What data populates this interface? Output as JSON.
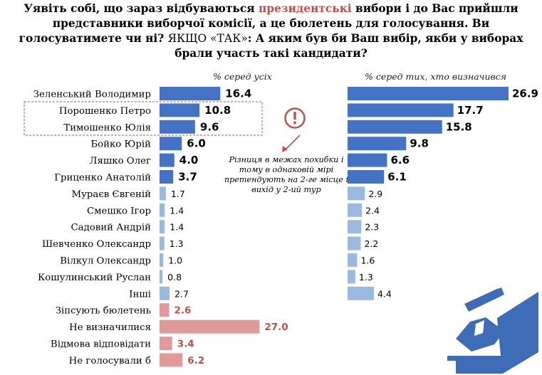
{
  "title": {
    "part1": "Уявіть собі, що зараз відбуваються ",
    "highlight": "президентські",
    "part2": " вибори і до Вас прийшли представники виборчої комісії, а це бюлетень для голосування. Ви голосуватимете чи ні? ",
    "plain": "ЯКЩО «ТАК»",
    "part3": ": А яким був би Ваш вибір, якби у виборах брали участь такі кандидати?"
  },
  "headers": {
    "all": "% серед усіх",
    "decided": "% серед тих, хто визначився"
  },
  "note": "Різниця в межах похибки і тому в однаковій мірі претендують на 2-ге місце і вихід у 2-ий тур",
  "colors": {
    "strong_blue": "#4472c4",
    "light_blue": "#9bb9df",
    "red_bar": "#e09a9a",
    "red_text": "#c0504d",
    "highlight_box": "#c0504d",
    "icon_blue": "#3e6cb6"
  },
  "icons": [
    "exclamation-circle-icon",
    "arrow-icon",
    "ballot-box-icon"
  ],
  "chart_data": [
    {
      "type": "bar",
      "orientation": "horizontal",
      "series_label": "% серед усіх",
      "categories": [
        "Зеленський Володимир",
        "Порошенко Петро",
        "Тимошенко Юлія",
        "Бойко Юрій",
        "Ляшко Олег",
        "Гриценко Анатолій",
        "Мураєв Євгеній",
        "Смешко Ігор",
        "Садовий Андрій",
        "Шевченко Олександр",
        "Вілкул Олександр",
        "Кошулинський Руслан",
        "Інші",
        "Зіпсують бюлетень",
        "Не визначилися",
        "Відмова відповідати",
        "Не голосували б"
      ],
      "values": [
        16.4,
        10.8,
        9.6,
        6.0,
        4.0,
        3.7,
        1.7,
        1.4,
        1.4,
        1.3,
        1.0,
        0.8,
        2.7,
        2.6,
        27.0,
        3.4,
        6.2
      ],
      "value_labels": [
        "16.4",
        "10.8",
        "9.6",
        "6.0",
        "4.0",
        "3.7",
        "1.7",
        "1.4",
        "1.4",
        "1.3",
        "1.0",
        "0.8",
        "2.7",
        "2.6",
        "27.0",
        "3.4",
        "6.2"
      ],
      "highlighted": [
        "Порошенко Петро",
        "Тимошенко Юлія"
      ]
    },
    {
      "type": "bar",
      "orientation": "horizontal",
      "series_label": "% серед тих, хто визначився",
      "categories": [
        "Зеленський Володимир",
        "Порошенко Петро",
        "Тимошенко Юлія",
        "Бойко Юрій",
        "Ляшко Олег",
        "Гриценко Анатолій",
        "Мураєв Євгеній",
        "Смешко Ігор",
        "Садовий Андрій",
        "Шевченко Олександр",
        "Вілкул Олександр",
        "Кошулинський Руслан",
        "Інші"
      ],
      "values": [
        26.9,
        17.7,
        15.8,
        9.8,
        6.6,
        6.1,
        2.9,
        2.4,
        2.3,
        2.2,
        1.6,
        1.3,
        4.4
      ],
      "value_labels": [
        "26.9",
        "17.7",
        "15.8",
        "9.8",
        "6.6",
        "6.1",
        "2.9",
        "2.4",
        "2.3",
        "2.2",
        "1.6",
        "1.3",
        "4.4"
      ]
    }
  ]
}
